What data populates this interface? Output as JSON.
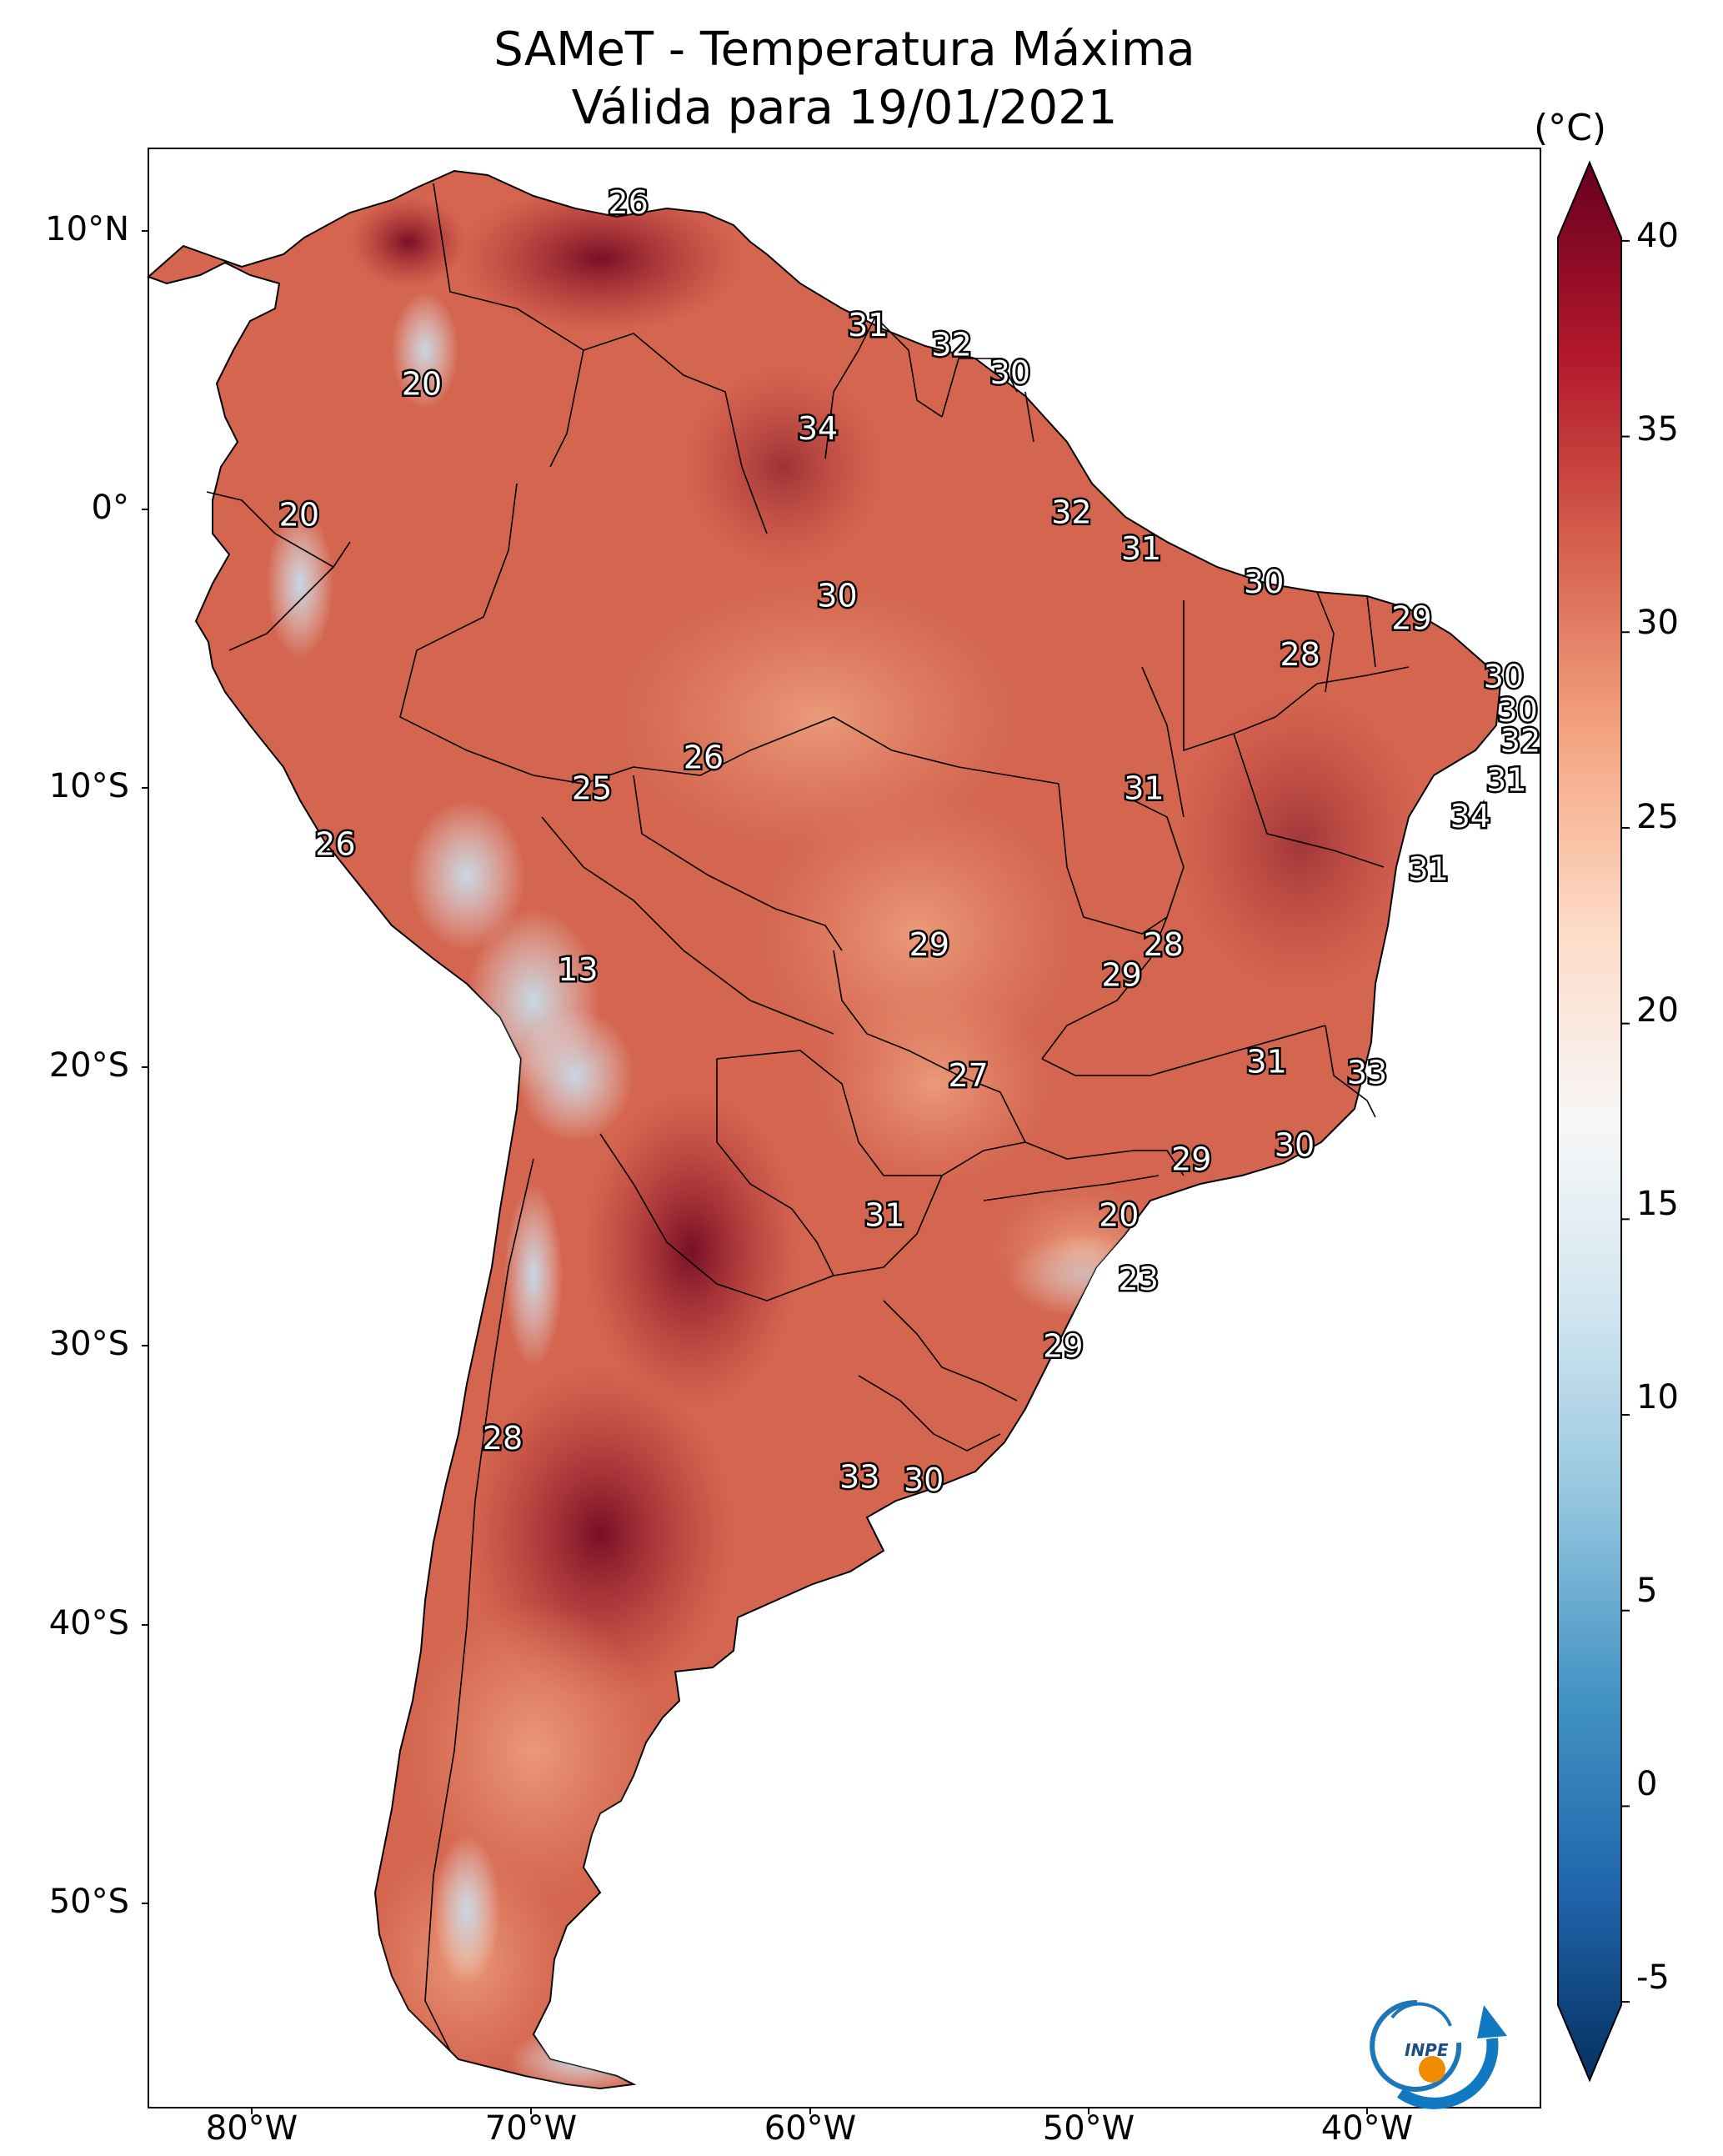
{
  "title_line1": "SAMeT - Temperatura Máxima",
  "title_line2": "Válida para 19/01/2021",
  "colorbar": {
    "unit": "(°C)",
    "min": -7,
    "max": 42,
    "ticks": [
      "40",
      "35",
      "30",
      "25",
      "20",
      "15",
      "10",
      "5",
      "0",
      "-5"
    ],
    "colors": [
      "#053061",
      "#2166ac",
      "#4393c3",
      "#92c5de",
      "#d1e5f0",
      "#f7f7f7",
      "#fddbc7",
      "#f4a582",
      "#d6604d",
      "#b2182b",
      "#67001f"
    ]
  },
  "axes": {
    "lat_labels": [
      "10°N",
      "0°",
      "10°S",
      "20°S",
      "30°S",
      "40°S",
      "50°S"
    ],
    "lon_labels": [
      "80°W",
      "70°W",
      "60°W",
      "50°W",
      "40°W"
    ]
  },
  "logo": {
    "text": "INPE",
    "icon": "inpe-logo-icon"
  },
  "temperature_labels": [
    {
      "value": "26",
      "lon": -66.5,
      "lat": 11.0
    },
    {
      "value": "31",
      "lon": -57.9,
      "lat": 6.6
    },
    {
      "value": "32",
      "lon": -54.9,
      "lat": 5.9
    },
    {
      "value": "30",
      "lon": -52.8,
      "lat": 4.9
    },
    {
      "value": "20",
      "lon": -73.9,
      "lat": 4.5
    },
    {
      "value": "34",
      "lon": -59.7,
      "lat": 2.9
    },
    {
      "value": "20",
      "lon": -78.3,
      "lat": -0.2
    },
    {
      "value": "32",
      "lon": -50.6,
      "lat": -0.1
    },
    {
      "value": "31",
      "lon": -48.1,
      "lat": -1.4
    },
    {
      "value": "30",
      "lon": -59.0,
      "lat": -3.1
    },
    {
      "value": "30",
      "lon": -43.7,
      "lat": -2.6
    },
    {
      "value": "29",
      "lon": -38.4,
      "lat": -3.9
    },
    {
      "value": "28",
      "lon": -42.4,
      "lat": -5.2
    },
    {
      "value": "30",
      "lon": -35.1,
      "lat": -6.0
    },
    {
      "value": "30",
      "lon": -34.6,
      "lat": -7.2
    },
    {
      "value": "32",
      "lon": -34.5,
      "lat": -8.3
    },
    {
      "value": "26",
      "lon": -63.8,
      "lat": -8.9
    },
    {
      "value": "25",
      "lon": -67.8,
      "lat": -10.0
    },
    {
      "value": "31",
      "lon": -48.0,
      "lat": -10.0
    },
    {
      "value": "31",
      "lon": -35.0,
      "lat": -9.7
    },
    {
      "value": "34",
      "lon": -36.3,
      "lat": -11.0
    },
    {
      "value": "26",
      "lon": -77.0,
      "lat": -12.0
    },
    {
      "value": "31",
      "lon": -37.8,
      "lat": -12.9
    },
    {
      "value": "29",
      "lon": -55.7,
      "lat": -15.6
    },
    {
      "value": "28",
      "lon": -47.3,
      "lat": -15.6
    },
    {
      "value": "29",
      "lon": -48.8,
      "lat": -16.7
    },
    {
      "value": "13",
      "lon": -68.3,
      "lat": -16.5
    },
    {
      "value": "31",
      "lon": -43.6,
      "lat": -19.8
    },
    {
      "value": "33",
      "lon": -40.0,
      "lat": -20.2
    },
    {
      "value": "27",
      "lon": -54.3,
      "lat": -20.3
    },
    {
      "value": "30",
      "lon": -42.6,
      "lat": -22.8
    },
    {
      "value": "29",
      "lon": -46.3,
      "lat": -23.3
    },
    {
      "value": "31",
      "lon": -57.3,
      "lat": -25.3
    },
    {
      "value": "20",
      "lon": -48.9,
      "lat": -25.3
    },
    {
      "value": "23",
      "lon": -48.2,
      "lat": -27.6
    },
    {
      "value": "29",
      "lon": -50.9,
      "lat": -30.0
    },
    {
      "value": "28",
      "lon": -71.0,
      "lat": -33.3
    },
    {
      "value": "33",
      "lon": -58.2,
      "lat": -34.7
    },
    {
      "value": "30",
      "lon": -55.9,
      "lat": -34.8
    }
  ]
}
